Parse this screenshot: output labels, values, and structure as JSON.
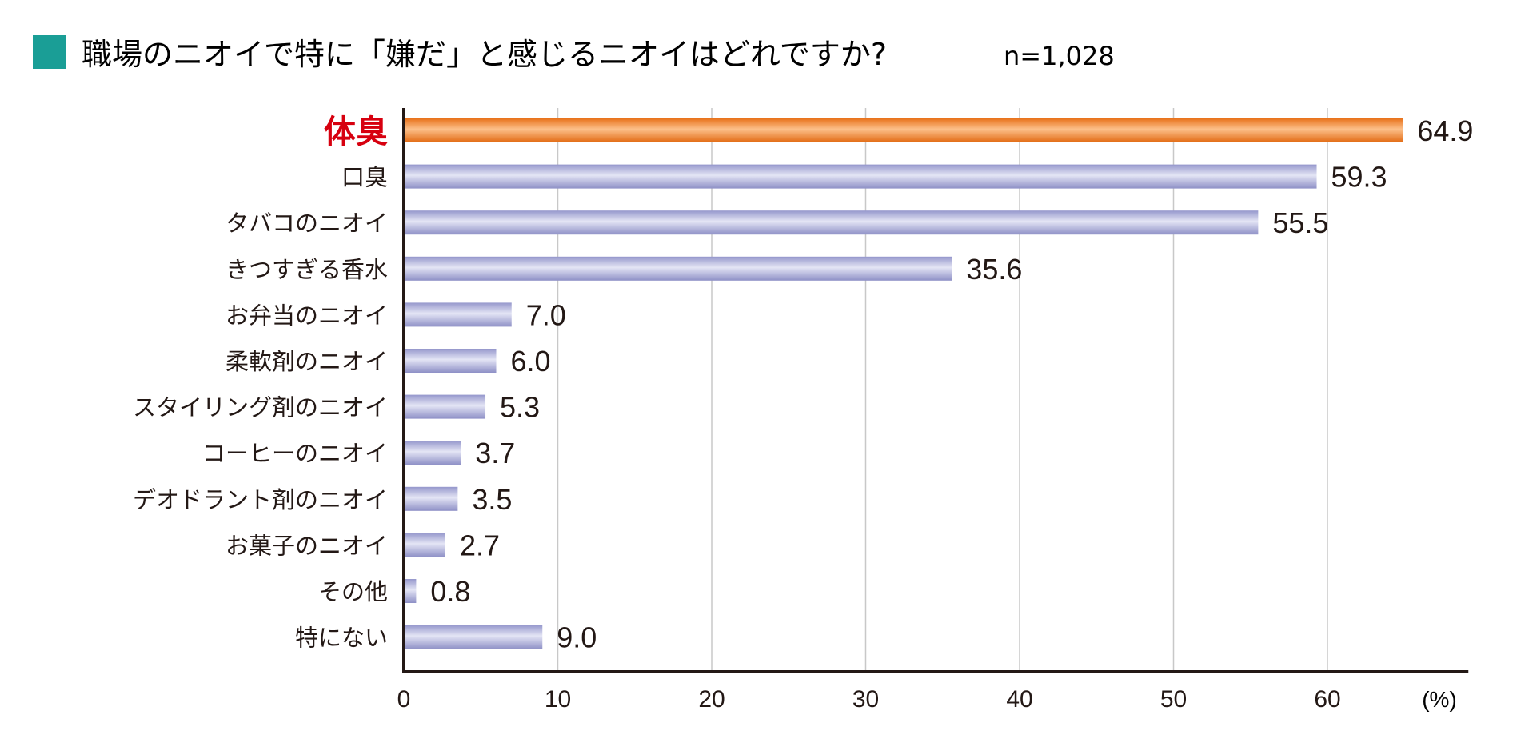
{
  "header": {
    "title": "職場のニオイで特に「嫌だ」と感じるニオイはどれですか?",
    "sample": "n=1,028"
  },
  "colors": {
    "title_square": "#1a9e96",
    "highlight_bar": "#f08a30",
    "highlight_label": "#d7000f",
    "bar": "#a9abd8",
    "axis": "#231815",
    "grid": "#c8c8c8"
  },
  "chart_data": {
    "type": "bar",
    "orientation": "horizontal",
    "title": "職場のニオイで特に「嫌だ」と感じるニオイはどれですか?",
    "categories": [
      "体臭",
      "口臭",
      "タバコのニオイ",
      "きつすぎる香水",
      "お弁当のニオイ",
      "柔軟剤のニオイ",
      "スタイリング剤のニオイ",
      "コーヒーのニオイ",
      "デオドラント剤のニオイ",
      "お菓子のニオイ",
      "その他",
      "特にない"
    ],
    "values": [
      64.9,
      59.3,
      55.5,
      35.6,
      7.0,
      6.0,
      5.3,
      3.7,
      3.5,
      2.7,
      0.8,
      9.0
    ],
    "value_labels": [
      "64.9",
      "59.3",
      "55.5",
      "35.6",
      "7.0",
      "6.0",
      "5.3",
      "3.7",
      "3.5",
      "2.7",
      "0.8",
      "9.0"
    ],
    "highlight_index": 0,
    "xlim": [
      0,
      69
    ],
    "xticks": [
      0,
      10,
      20,
      30,
      40,
      50,
      60
    ],
    "unit_label": "(%)",
    "xlabel": "",
    "ylabel": "",
    "grid": true,
    "legend": "none"
  }
}
